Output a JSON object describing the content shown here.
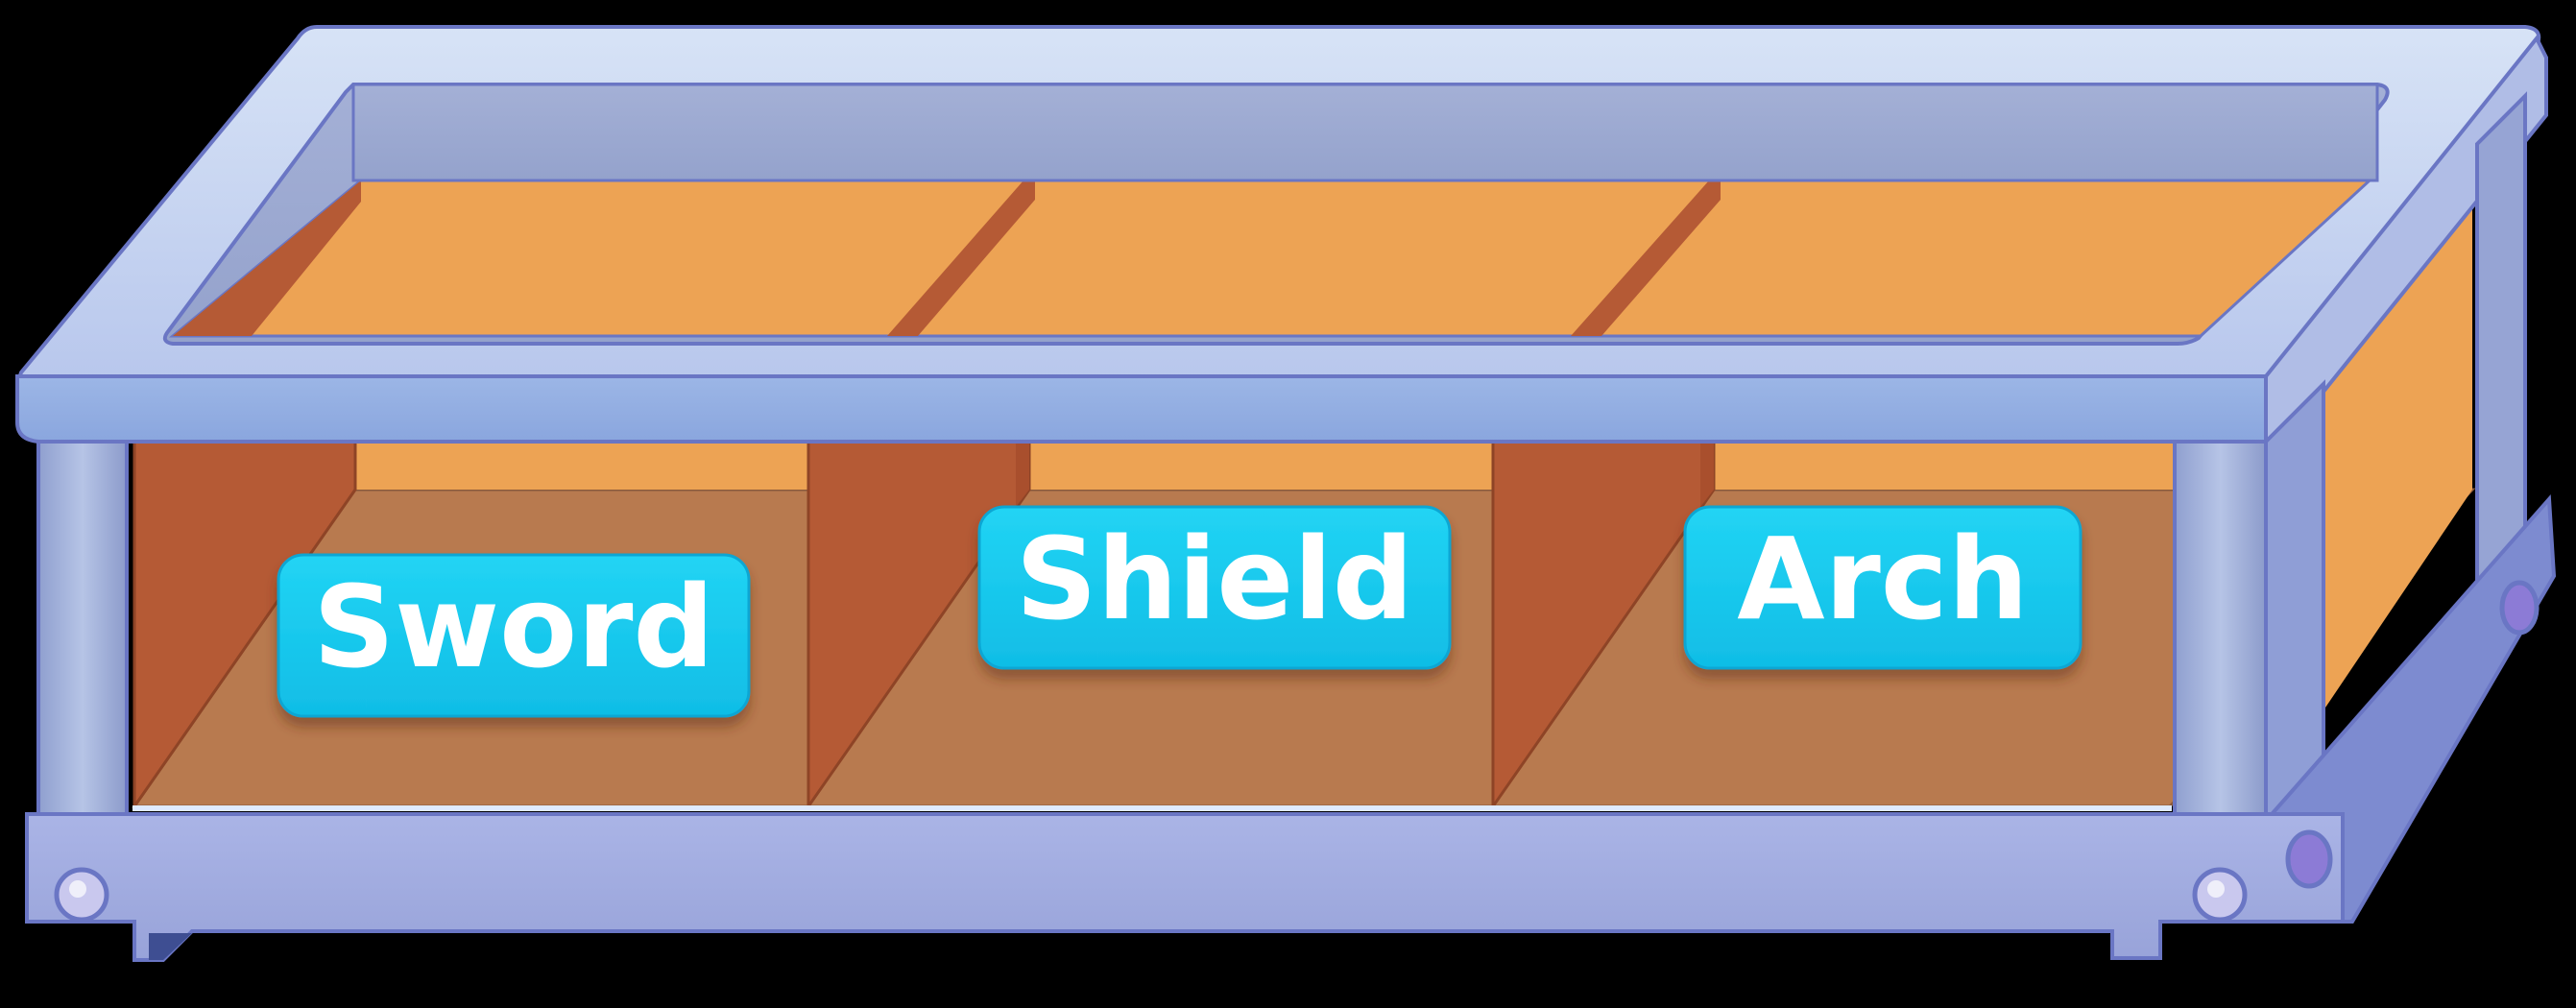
{
  "shelf": {
    "slots": [
      {
        "label": "Sword"
      },
      {
        "label": "Shield"
      },
      {
        "label": "Arch"
      }
    ]
  },
  "colors": {
    "frame": "#9aa8dc",
    "frame_light": "#cfdcf3",
    "frame_outline": "#6a76c4",
    "back_wall": "#eda354",
    "side_wall": "#b55a35",
    "floor": "#b87a4f",
    "label_bg": "#19c8ec",
    "label_text": "#ffffff"
  }
}
